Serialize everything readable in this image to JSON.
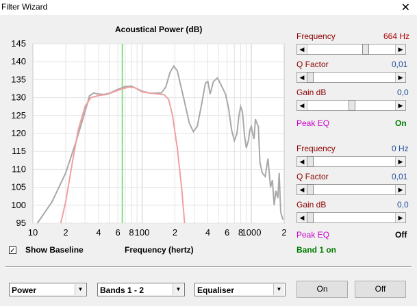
{
  "window": {
    "title": "Filter Wizard",
    "close_glyph": "✕"
  },
  "chart_data": {
    "type": "line",
    "title": "Acoustical Power (dB)",
    "xlabel": "Frequency (hertz)",
    "ylabel": "",
    "xscale": "log",
    "xlim": [
      10,
      2000
    ],
    "ylim": [
      95,
      145
    ],
    "y_ticks": [
      95,
      100,
      105,
      110,
      115,
      120,
      125,
      130,
      135,
      140,
      145
    ],
    "x_ticks": [
      {
        "value": 10,
        "label": "10"
      },
      {
        "value": 20,
        "label": "2"
      },
      {
        "value": 40,
        "label": "4"
      },
      {
        "value": 60,
        "label": "6"
      },
      {
        "value": 80,
        "label": "8"
      },
      {
        "value": 100,
        "label": "100"
      },
      {
        "value": 200,
        "label": "2"
      },
      {
        "value": 400,
        "label": "4"
      },
      {
        "value": 600,
        "label": "6"
      },
      {
        "value": 800,
        "label": "8"
      },
      {
        "value": 1000,
        "label": "1000"
      },
      {
        "value": 2000,
        "label": "2"
      }
    ],
    "marker_x": 66,
    "grid": true,
    "series": [
      {
        "color": "#a8a8a8",
        "points": [
          [
            11,
            95
          ],
          [
            15,
            101
          ],
          [
            20,
            109
          ],
          [
            25,
            118
          ],
          [
            30,
            126
          ],
          [
            33,
            130.5
          ],
          [
            36,
            131.3
          ],
          [
            40,
            131
          ],
          [
            45,
            130.9
          ],
          [
            50,
            131.2
          ],
          [
            60,
            132.3
          ],
          [
            70,
            133.1
          ],
          [
            80,
            133.2
          ],
          [
            100,
            131.8
          ],
          [
            120,
            131.2
          ],
          [
            150,
            131.3
          ],
          [
            165,
            133
          ],
          [
            180,
            137
          ],
          [
            195,
            138.8
          ],
          [
            210,
            137.5
          ],
          [
            240,
            130
          ],
          [
            270,
            123
          ],
          [
            295,
            120.5
          ],
          [
            320,
            122
          ],
          [
            350,
            128
          ],
          [
            380,
            134
          ],
          [
            400,
            134.5
          ],
          [
            420,
            131
          ],
          [
            450,
            134.5
          ],
          [
            490,
            135.5
          ],
          [
            530,
            133.5
          ],
          [
            580,
            131
          ],
          [
            620,
            127
          ],
          [
            660,
            121
          ],
          [
            700,
            118
          ],
          [
            740,
            120
          ],
          [
            770,
            125
          ],
          [
            800,
            127.5
          ],
          [
            830,
            126
          ],
          [
            870,
            119
          ],
          [
            900,
            116
          ],
          [
            940,
            118
          ],
          [
            970,
            121
          ],
          [
            1000,
            122
          ],
          [
            1030,
            120
          ],
          [
            1060,
            118.5
          ],
          [
            1090,
            124
          ],
          [
            1120,
            123
          ],
          [
            1160,
            122
          ],
          [
            1200,
            112
          ],
          [
            1260,
            109
          ],
          [
            1340,
            108
          ],
          [
            1420,
            113
          ],
          [
            1500,
            105
          ],
          [
            1560,
            107
          ],
          [
            1620,
            100
          ],
          [
            1680,
            104
          ],
          [
            1750,
            102
          ],
          [
            1800,
            109
          ],
          [
            1860,
            98
          ],
          [
            1950,
            96
          ]
        ]
      },
      {
        "color": "#f0a0a0",
        "points": [
          [
            18,
            95
          ],
          [
            20,
            101
          ],
          [
            23,
            112
          ],
          [
            26,
            121
          ],
          [
            30,
            127.5
          ],
          [
            34,
            130
          ],
          [
            40,
            130.6
          ],
          [
            48,
            130.9
          ],
          [
            55,
            131.6
          ],
          [
            65,
            132.4
          ],
          [
            75,
            132.9
          ],
          [
            85,
            132.8
          ],
          [
            100,
            131.6
          ],
          [
            120,
            131.2
          ],
          [
            140,
            131
          ],
          [
            160,
            130.8
          ],
          [
            175,
            129.5
          ],
          [
            190,
            125
          ],
          [
            210,
            116
          ],
          [
            230,
            105
          ],
          [
            245,
            95
          ]
        ]
      }
    ]
  },
  "band1": {
    "frequency_label": "Frequency",
    "frequency_value": "664 Hz",
    "frequency_level": 0.66,
    "q_label": "Q Factor",
    "q_value": "0,01",
    "q_level": 0.0,
    "gain_label": "Gain  dB",
    "gain_value": "0,0",
    "gain_level": 0.5,
    "eq_label": "Peak EQ",
    "eq_value": "On"
  },
  "band2": {
    "frequency_label": "Frequency",
    "frequency_value": "0 Hz",
    "frequency_level": 0.0,
    "q_label": "Q Factor",
    "q_value": "0,01",
    "q_level": 0.0,
    "gain_label": "Gain  dB",
    "gain_value": "0,0",
    "gain_level": 0.0,
    "eq_label": "Peak EQ",
    "eq_value": "Off"
  },
  "show_baseline": {
    "label": "Show Baseline",
    "checked": true,
    "check_glyph": "✓"
  },
  "band_status": "Band 1 on",
  "selects": {
    "mode": "Power",
    "bands": "Bands 1 - 2",
    "type": "Equaliser"
  },
  "buttons": {
    "on": "On",
    "off": "Off"
  }
}
